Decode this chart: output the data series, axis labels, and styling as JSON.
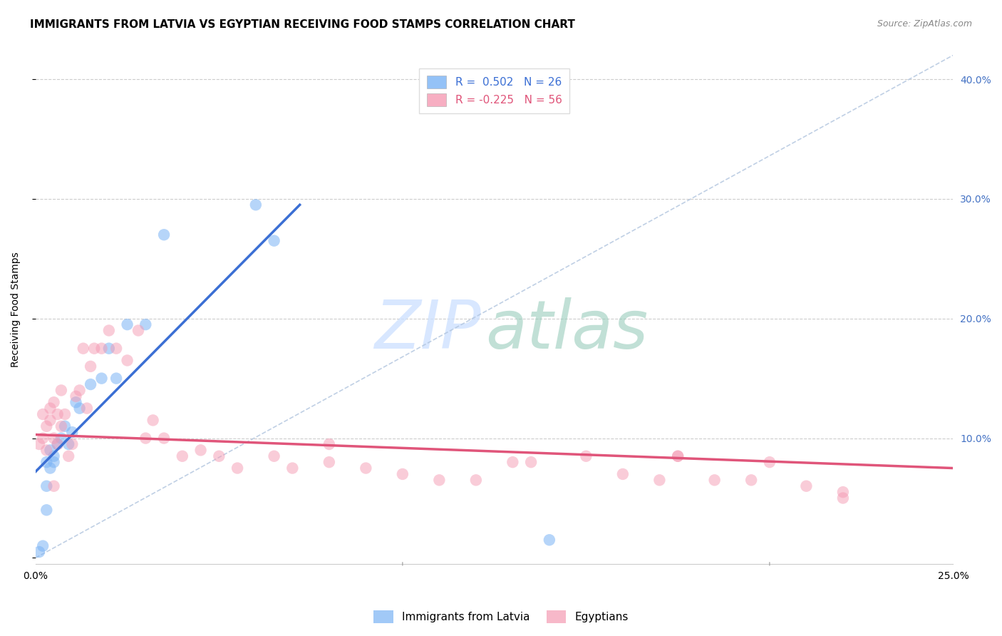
{
  "title": "IMMIGRANTS FROM LATVIA VS EGYPTIAN RECEIVING FOOD STAMPS CORRELATION CHART",
  "source": "Source: ZipAtlas.com",
  "ylabel": "Receiving Food Stamps",
  "xlim": [
    0,
    0.25
  ],
  "ylim": [
    -0.005,
    0.42
  ],
  "yticks": [
    0.0,
    0.1,
    0.2,
    0.3,
    0.4
  ],
  "ytick_labels": [
    "",
    "10.0%",
    "20.0%",
    "30.0%",
    "40.0%"
  ],
  "xticks": [
    0,
    0.05,
    0.1,
    0.15,
    0.2,
    0.25
  ],
  "xtick_labels": [
    "0.0%",
    "",
    "",
    "",
    "",
    "25.0%"
  ],
  "latvia_R": 0.502,
  "latvia_N": 26,
  "egypt_R": -0.225,
  "egypt_N": 56,
  "legend_label_1": "Immigrants from Latvia",
  "legend_label_2": "Egyptians",
  "blue_color": "#7ab3f5",
  "pink_color": "#f59ab3",
  "blue_line_color": "#3b6fd4",
  "pink_line_color": "#e0557a",
  "diag_line_color": "#b0c4de",
  "title_fontsize": 11,
  "axis_label_fontsize": 10,
  "tick_fontsize": 10,
  "right_tick_color": "#4472c4",
  "latvia_x": [
    0.001,
    0.002,
    0.003,
    0.003,
    0.004,
    0.004,
    0.005,
    0.005,
    0.006,
    0.007,
    0.008,
    0.009,
    0.01,
    0.011,
    0.012,
    0.015,
    0.018,
    0.02,
    0.022,
    0.025,
    0.03,
    0.035,
    0.06,
    0.065,
    0.14,
    0.003
  ],
  "latvia_y": [
    0.005,
    0.01,
    0.06,
    0.08,
    0.075,
    0.09,
    0.08,
    0.085,
    0.095,
    0.1,
    0.11,
    0.095,
    0.105,
    0.13,
    0.125,
    0.145,
    0.15,
    0.175,
    0.15,
    0.195,
    0.195,
    0.27,
    0.295,
    0.265,
    0.015,
    0.04
  ],
  "egypt_x": [
    0.001,
    0.002,
    0.002,
    0.003,
    0.003,
    0.004,
    0.004,
    0.005,
    0.005,
    0.006,
    0.006,
    0.007,
    0.007,
    0.008,
    0.009,
    0.01,
    0.011,
    0.012,
    0.013,
    0.014,
    0.015,
    0.016,
    0.018,
    0.02,
    0.022,
    0.025,
    0.028,
    0.03,
    0.032,
    0.035,
    0.04,
    0.045,
    0.05,
    0.055,
    0.065,
    0.07,
    0.08,
    0.09,
    0.1,
    0.11,
    0.12,
    0.135,
    0.15,
    0.16,
    0.17,
    0.175,
    0.185,
    0.195,
    0.2,
    0.21,
    0.22,
    0.08,
    0.13,
    0.175,
    0.22,
    0.005
  ],
  "egypt_y": [
    0.095,
    0.1,
    0.12,
    0.09,
    0.11,
    0.115,
    0.125,
    0.13,
    0.1,
    0.095,
    0.12,
    0.11,
    0.14,
    0.12,
    0.085,
    0.095,
    0.135,
    0.14,
    0.175,
    0.125,
    0.16,
    0.175,
    0.175,
    0.19,
    0.175,
    0.165,
    0.19,
    0.1,
    0.115,
    0.1,
    0.085,
    0.09,
    0.085,
    0.075,
    0.085,
    0.075,
    0.08,
    0.075,
    0.07,
    0.065,
    0.065,
    0.08,
    0.085,
    0.07,
    0.065,
    0.085,
    0.065,
    0.065,
    0.08,
    0.06,
    0.055,
    0.095,
    0.08,
    0.085,
    0.05,
    0.06
  ],
  "blue_line_x0": 0.0,
  "blue_line_y0": 0.072,
  "blue_line_x1": 0.072,
  "blue_line_y1": 0.295,
  "pink_line_x0": 0.0,
  "pink_line_y0": 0.103,
  "pink_line_x1": 0.25,
  "pink_line_y1": 0.075
}
